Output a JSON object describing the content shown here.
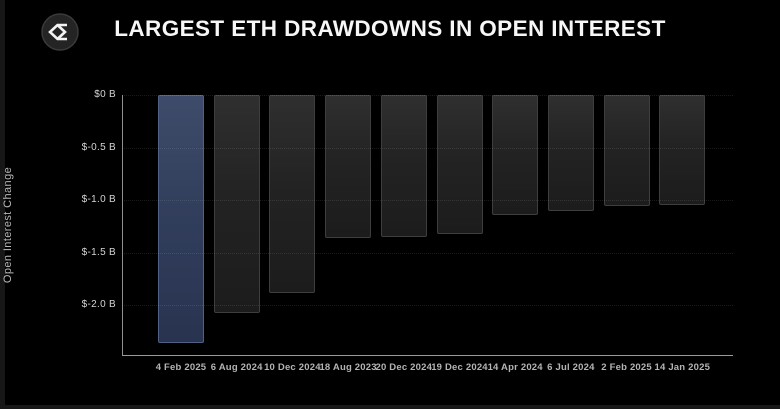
{
  "header": {
    "title": "LARGEST ETH DRAWDOWNS IN OPEN INTEREST",
    "logo_icon": "sigma-diamond-icon"
  },
  "chart_data": {
    "type": "bar",
    "title": "LARGEST ETH DRAWDOWNS IN OPEN INTEREST",
    "xlabel": "",
    "ylabel": "Open Interest Change",
    "unit": "billions USD",
    "categories": [
      "4 Feb 2025",
      "6 Aug 2024",
      "10 Dec 2024",
      "18 Aug 2023",
      "20 Dec 2024",
      "19 Dec 2024",
      "14 Apr 2024",
      "6 Jul 2024",
      "2 Feb 2025",
      "14 Jan 2025"
    ],
    "values": [
      -2.36,
      -2.08,
      -1.89,
      -1.36,
      -1.35,
      -1.32,
      -1.14,
      -1.1,
      -1.06,
      -1.05
    ],
    "highlight_index": 0,
    "ylim": [
      -2.48,
      0
    ],
    "yticks": {
      "values": [
        0,
        -0.5,
        -1.0,
        -1.5,
        -2.0
      ],
      "labels": [
        "$0 B",
        "$-0.5 B",
        "$-1.0 B",
        "$-1.5 B",
        "$-2.0 B"
      ]
    },
    "grid": "horizontal-dotted",
    "legend": "none",
    "colors": {
      "background": "#000000",
      "highlight_bar": "#33405e",
      "default_bar": "#242424",
      "axis": "#8f8f8f",
      "tick_text": "#d4d4d4",
      "xlabel_text": "#b4b4b4",
      "title_text": "#f7f7f7"
    }
  }
}
